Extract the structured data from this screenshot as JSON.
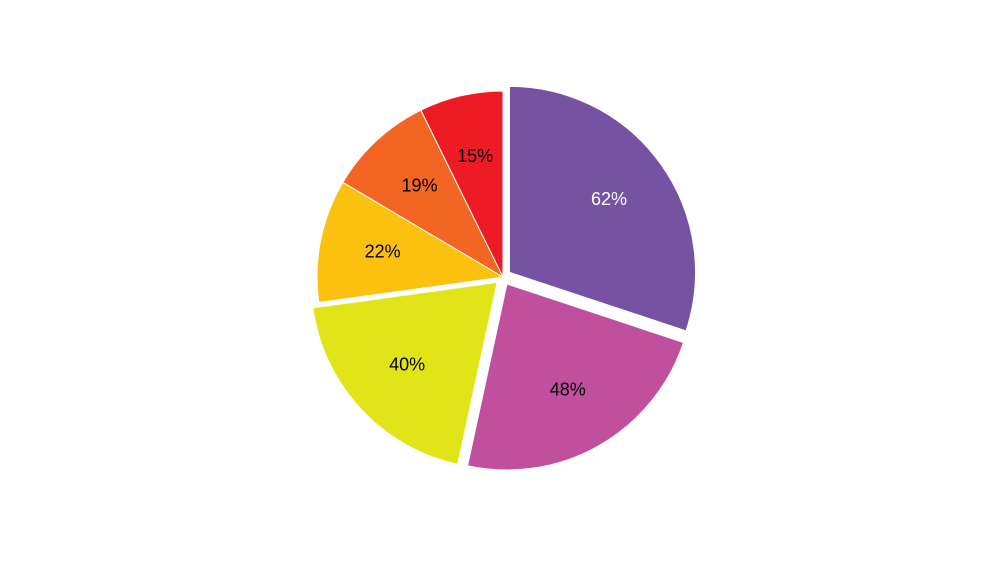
{
  "chart_data": {
    "type": "pie",
    "values": [
      62,
      48,
      40,
      22,
      19,
      15
    ],
    "value_labels": [
      "62%",
      "48%",
      "40%",
      "22%",
      "19%",
      "15%"
    ],
    "colors": [
      "#7652a3",
      "#c0509e",
      "#e1e518",
      "#fcc00f",
      "#f26522",
      "#ed1c24"
    ],
    "label_colors": [
      "#ffffff",
      "#000000",
      "#000000",
      "#000000",
      "#000000",
      "#000000"
    ],
    "explode": [
      true,
      true,
      true,
      false,
      false,
      false
    ],
    "start_angle": "top",
    "direction": "clockwise"
  }
}
